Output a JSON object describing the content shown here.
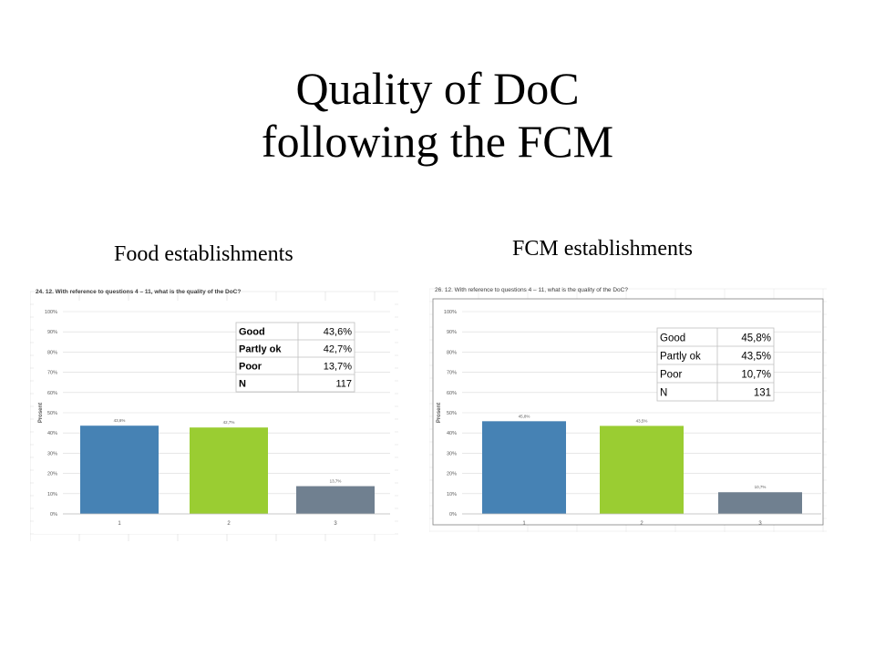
{
  "slide": {
    "title_line1": "Quality of DoC",
    "title_line2": "following the FCM"
  },
  "subtitles": {
    "left": "Food establishments",
    "right": "FCM establishments"
  },
  "chart_data": [
    {
      "type": "bar",
      "title": "24. 12. With reference to questions 4 – 11, what is the quality of the DoC?",
      "ylabel": "Prosent",
      "xlabel": "",
      "categories": [
        "1",
        "2",
        "3"
      ],
      "values": [
        43.6,
        42.7,
        13.7
      ],
      "data_labels": [
        "43,6%",
        "42,7%",
        "13,7%"
      ],
      "bar_colors": [
        "#4682b4",
        "#9acd32",
        "#708090"
      ],
      "ylim": [
        0,
        100
      ],
      "yticks": [
        "0%",
        "10%",
        "20%",
        "30%",
        "40%",
        "50%",
        "60%",
        "70%",
        "80%",
        "90%",
        "100%"
      ],
      "grid": true,
      "legend_table": {
        "position": "top-right",
        "rows": [
          {
            "label": "Good",
            "value": "43,6%"
          },
          {
            "label": "Partly ok",
            "value": "42,7%"
          },
          {
            "label": "Poor",
            "value": "13,7%"
          },
          {
            "label": "N",
            "value": "117"
          }
        ]
      }
    },
    {
      "type": "bar",
      "title": "26. 12. With reference to questions 4 – 11, what is the quality of the DoC?",
      "ylabel": "Prosent",
      "xlabel": "",
      "categories": [
        "1",
        "2",
        "3"
      ],
      "values": [
        45.8,
        43.5,
        10.7
      ],
      "data_labels": [
        "45,8%",
        "43,5%",
        "10,7%"
      ],
      "bar_colors": [
        "#4682b4",
        "#9acd32",
        "#708090"
      ],
      "ylim": [
        0,
        100
      ],
      "yticks": [
        "0%",
        "10%",
        "20%",
        "30%",
        "40%",
        "50%",
        "60%",
        "70%",
        "80%",
        "90%",
        "100%"
      ],
      "grid": true,
      "legend_table": {
        "position": "top-right",
        "rows": [
          {
            "label": "Good",
            "value": "45,8%"
          },
          {
            "label": "Partly ok",
            "value": "43,5%"
          },
          {
            "label": "Poor",
            "value": "10,7%"
          },
          {
            "label": "N",
            "value": "131"
          }
        ]
      }
    }
  ]
}
